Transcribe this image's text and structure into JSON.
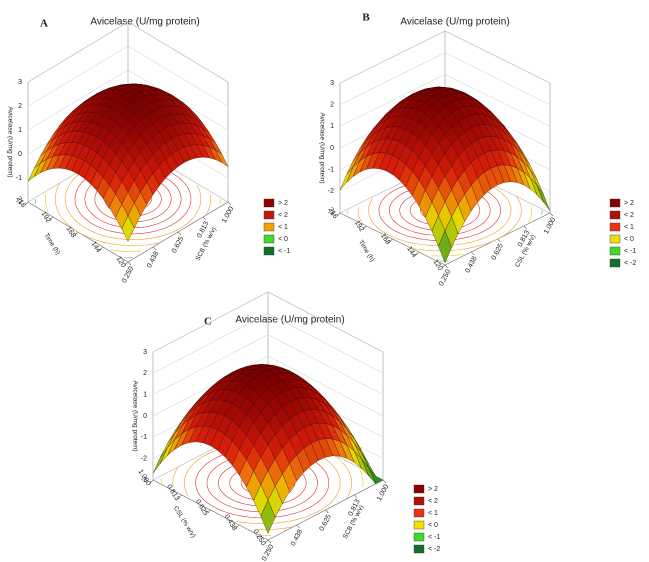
{
  "chart_data": [
    {
      "type": "surface",
      "panel": "A",
      "title": "Avicelase (U/mg protein)",
      "zlabel": "Avicelase (U/mg protein)",
      "xlabel": "SCB (% w/v)",
      "ylabel": "Time (h)",
      "xlim": [
        0.25,
        1
      ],
      "xticks": [
        {
          "value": 0.25,
          "label": "0.250"
        },
        {
          "value": 0.438,
          "label": "0.438"
        },
        {
          "value": 0.625,
          "label": "0.625"
        },
        {
          "value": 0.813,
          "label": "0.813"
        },
        {
          "value": 1,
          "label": "1.000"
        }
      ],
      "ylim": [
        120,
        216
      ],
      "yticks": [
        120,
        144,
        168,
        192,
        216
      ],
      "zlim": [
        -2,
        3
      ],
      "zticks": [
        -2,
        -1,
        0,
        1,
        2,
        3
      ],
      "legend": [
        {
          "label": "> 2",
          "color": "#8b0000"
        },
        {
          "label": "< 2",
          "color": "#c41a0a"
        },
        {
          "label": "< 1",
          "color": "#f5a000"
        },
        {
          "label": "< 0",
          "color": "#3cdc28"
        },
        {
          "label": "< -1",
          "color": "#13702a"
        }
      ]
    },
    {
      "type": "surface",
      "panel": "B",
      "title": "Avicelase (U/mg protein)",
      "zlabel": "Avicelase (U/mg protein)",
      "xlabel": "CSL (% w/v)",
      "ylabel": "Time (h)",
      "xlim": [
        0.25,
        1
      ],
      "xticks": [
        {
          "value": 0.25,
          "label": "0.250"
        },
        {
          "value": 0.438,
          "label": "0.438"
        },
        {
          "value": 0.625,
          "label": "0.625"
        },
        {
          "value": 0.813,
          "label": "0.813"
        },
        {
          "value": 1,
          "label": "1.000"
        }
      ],
      "ylim": [
        120,
        216
      ],
      "yticks": [
        120,
        144,
        168,
        192,
        216
      ],
      "zlim": [
        -3,
        3
      ],
      "zticks": [
        -3,
        -2,
        -1,
        0,
        1,
        2,
        3
      ],
      "legend": [
        {
          "label": "> 2",
          "color": "#8b0000"
        },
        {
          "label": "< 2",
          "color": "#b01008"
        },
        {
          "label": "< 1",
          "color": "#f03010"
        },
        {
          "label": "< 0",
          "color": "#f0e000"
        },
        {
          "label": "< -1",
          "color": "#3cdc28"
        },
        {
          "label": "< -2",
          "color": "#13702a"
        }
      ]
    },
    {
      "type": "surface",
      "panel": "C",
      "title": "Avicelase (U/mg protein)",
      "zlabel": "Avicelase (U/mg protein)",
      "xlabel": "SCB (% w/v)",
      "ylabel": "CSL (% w/v)",
      "xlim": [
        0.25,
        1
      ],
      "xticks": [
        {
          "value": 0.25,
          "label": "0.250"
        },
        {
          "value": 0.438,
          "label": "0.438"
        },
        {
          "value": 0.625,
          "label": "0.625"
        },
        {
          "value": 0.813,
          "label": "0.813"
        },
        {
          "value": 1,
          "label": "1.000"
        }
      ],
      "ylim": [
        0.25,
        1
      ],
      "yticks": [
        {
          "value": 0.25,
          "label": "0.250"
        },
        {
          "value": 0.438,
          "label": "0.438"
        },
        {
          "value": 0.625,
          "label": "0.625"
        },
        {
          "value": 0.813,
          "label": "0.813"
        },
        {
          "value": 1,
          "label": "1.000"
        }
      ],
      "zlim": [
        -3,
        3
      ],
      "zticks": [
        -3,
        -2,
        -1,
        0,
        1,
        2,
        3
      ],
      "legend": [
        {
          "label": "> 2",
          "color": "#8b0000"
        },
        {
          "label": "< 2",
          "color": "#b01008"
        },
        {
          "label": "< 1",
          "color": "#f03010"
        },
        {
          "label": "< 0",
          "color": "#f0e000"
        },
        {
          "label": "< -1",
          "color": "#3cdc28"
        },
        {
          "label": "< -2",
          "color": "#13702a"
        }
      ]
    }
  ]
}
